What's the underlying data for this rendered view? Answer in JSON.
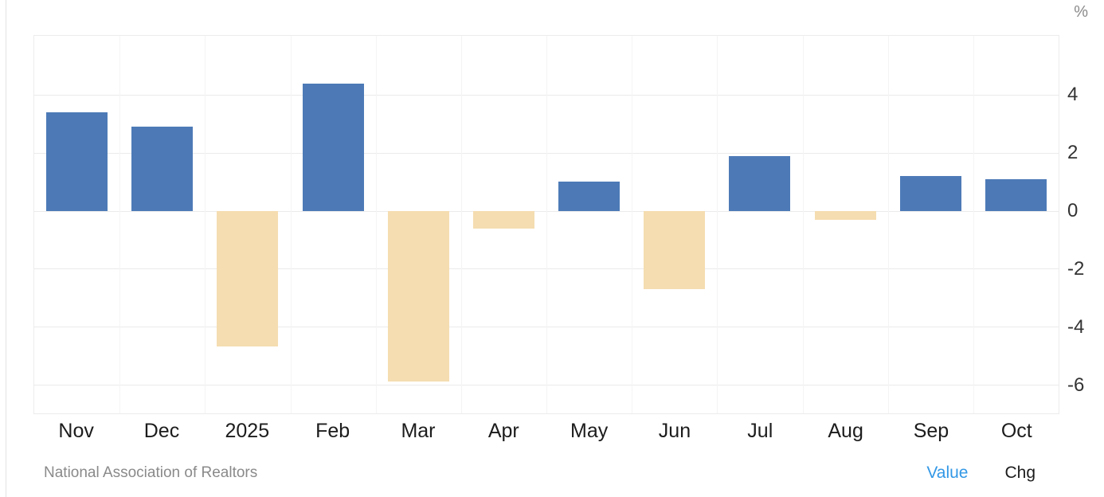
{
  "chart_data": {
    "type": "bar",
    "categories": [
      "Nov",
      "Dec",
      "2025",
      "Feb",
      "Mar",
      "Apr",
      "May",
      "Jun",
      "Jul",
      "Aug",
      "Sep",
      "Oct"
    ],
    "values": [
      3.4,
      2.9,
      -4.7,
      4.4,
      -5.9,
      -0.6,
      1.0,
      -2.7,
      1.9,
      -0.3,
      1.2,
      1.1
    ],
    "ylabel": "%",
    "yticks": [
      4,
      2,
      0,
      -2,
      -4,
      -6
    ],
    "ylim": [
      -7.0,
      6.05
    ],
    "grid": true,
    "legend_position": "none",
    "positive_color": "#4d7ab7",
    "negative_color": "#f5ddb1",
    "bar_width_fraction": 0.72
  },
  "footer": {
    "source": "National Association of Realtors",
    "value_label": "Value",
    "chg_label": "Chg",
    "value_color": "#3398e6"
  }
}
